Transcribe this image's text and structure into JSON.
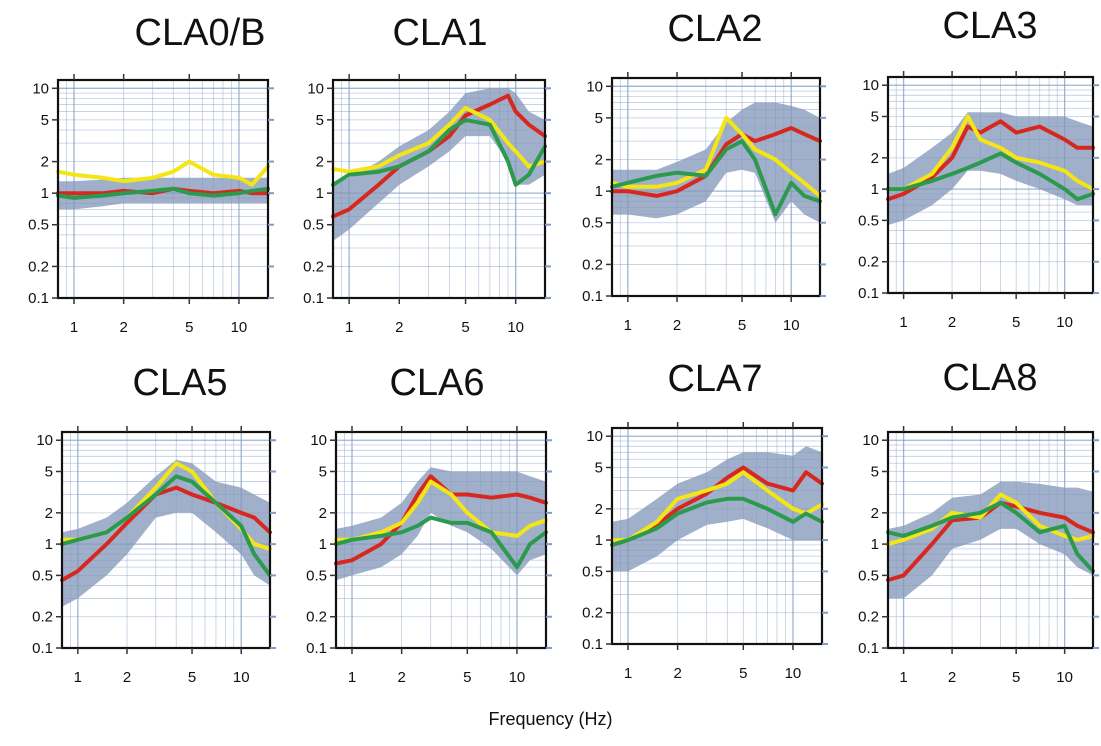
{
  "xlabel": "Frequency (Hz)",
  "colors": {
    "red": "#d7281f",
    "yellow": "#f3e614",
    "green": "#2c9a4e",
    "band": "#8196b8",
    "grid": "#7f9cc4"
  },
  "chart_data": [
    {
      "type": "line",
      "title": "CLA0/B",
      "xscale": "log",
      "yscale": "log",
      "xlim": [
        0.8,
        15
      ],
      "ylim": [
        0.1,
        12
      ],
      "xticks": [
        "1",
        "2",
        "5",
        "10"
      ],
      "yticks": [
        "0.1",
        "0.2",
        "0.5",
        "1",
        "2",
        "5",
        "10"
      ],
      "grid": true,
      "x": [
        0.8,
        1,
        1.5,
        2,
        3,
        4,
        5,
        7,
        10,
        12,
        15
      ],
      "series": [
        {
          "color": "red",
          "values": [
            1.0,
            1.0,
            1.0,
            1.05,
            1.0,
            1.1,
            1.05,
            1.0,
            1.05,
            1.0,
            1.0
          ]
        },
        {
          "color": "yellow",
          "values": [
            1.6,
            1.5,
            1.4,
            1.3,
            1.4,
            1.6,
            2.0,
            1.5,
            1.4,
            1.2,
            1.8
          ]
        },
        {
          "color": "green",
          "values": [
            0.95,
            0.9,
            0.95,
            1.0,
            1.05,
            1.1,
            1.0,
            0.95,
            1.0,
            1.05,
            1.1
          ]
        }
      ],
      "band": {
        "lower": [
          0.7,
          0.7,
          0.75,
          0.8,
          0.8,
          0.8,
          0.8,
          0.8,
          0.8,
          0.8,
          0.8
        ],
        "upper": [
          1.3,
          1.3,
          1.35,
          1.4,
          1.4,
          1.4,
          1.4,
          1.4,
          1.4,
          1.4,
          1.4
        ]
      }
    },
    {
      "type": "line",
      "title": "CLA1",
      "xscale": "log",
      "yscale": "log",
      "xlim": [
        0.8,
        15
      ],
      "ylim": [
        0.1,
        12
      ],
      "xticks": [
        "1",
        "2",
        "5",
        "10"
      ],
      "yticks": [
        "0.1",
        "0.2",
        "0.5",
        "1",
        "2",
        "5",
        "10"
      ],
      "grid": true,
      "x": [
        0.8,
        1,
        1.5,
        2,
        3,
        4,
        5,
        7,
        9,
        10,
        12,
        15
      ],
      "series": [
        {
          "color": "red",
          "values": [
            0.6,
            0.7,
            1.2,
            1.8,
            2.5,
            3.5,
            5.5,
            7.0,
            8.5,
            6.0,
            4.5,
            3.5
          ]
        },
        {
          "color": "yellow",
          "values": [
            1.7,
            1.6,
            1.8,
            2.3,
            3.0,
            4.5,
            6.5,
            5.0,
            3.0,
            2.5,
            1.8,
            2.0
          ]
        },
        {
          "color": "green",
          "values": [
            1.2,
            1.5,
            1.6,
            1.8,
            2.5,
            4.0,
            5.0,
            4.5,
            2.0,
            1.2,
            1.5,
            2.8
          ]
        }
      ],
      "band": {
        "lower": [
          0.35,
          0.45,
          0.8,
          1.2,
          1.8,
          2.5,
          3.5,
          3.5,
          2.0,
          1.2,
          1.2,
          1.5
        ],
        "upper": [
          1.2,
          1.4,
          2.0,
          2.8,
          4.0,
          6.0,
          9.0,
          10.0,
          10.0,
          9.0,
          6.0,
          5.0
        ]
      }
    },
    {
      "type": "line",
      "title": "CLA2",
      "xscale": "log",
      "yscale": "log",
      "xlim": [
        0.8,
        15
      ],
      "ylim": [
        0.1,
        12
      ],
      "xticks": [
        "1",
        "2",
        "5",
        "10"
      ],
      "yticks": [
        "0.1",
        "0.2",
        "0.5",
        "1",
        "2",
        "5",
        "10"
      ],
      "grid": true,
      "x": [
        0.8,
        1,
        1.5,
        2,
        3,
        4,
        5,
        6,
        8,
        10,
        12,
        15
      ],
      "series": [
        {
          "color": "red",
          "values": [
            1.0,
            1.0,
            0.9,
            1.0,
            1.4,
            2.8,
            3.5,
            3.0,
            3.5,
            4.0,
            3.5,
            3.0
          ]
        },
        {
          "color": "yellow",
          "values": [
            1.2,
            1.1,
            1.1,
            1.2,
            1.6,
            5.0,
            3.5,
            2.5,
            2.0,
            1.5,
            1.2,
            0.9
          ]
        },
        {
          "color": "green",
          "values": [
            1.1,
            1.2,
            1.4,
            1.5,
            1.4,
            2.5,
            3.0,
            2.0,
            0.6,
            1.2,
            0.9,
            0.8
          ]
        }
      ],
      "band": {
        "lower": [
          0.6,
          0.6,
          0.55,
          0.6,
          0.8,
          1.5,
          1.6,
          1.5,
          0.5,
          0.8,
          0.6,
          0.5
        ],
        "upper": [
          1.6,
          1.6,
          1.6,
          1.9,
          2.5,
          4.5,
          6.0,
          7.0,
          7.0,
          6.5,
          6.0,
          5.0
        ]
      }
    },
    {
      "type": "line",
      "title": "CLA3",
      "xscale": "log",
      "yscale": "log",
      "xlim": [
        0.8,
        15
      ],
      "ylim": [
        0.1,
        12
      ],
      "xticks": [
        "1",
        "2",
        "5",
        "10"
      ],
      "yticks": [
        "0.1",
        "0.2",
        "0.5",
        "1",
        "2",
        "5",
        "10"
      ],
      "grid": true,
      "x": [
        0.8,
        1,
        1.5,
        2,
        2.5,
        3,
        4,
        5,
        7,
        10,
        12,
        15
      ],
      "series": [
        {
          "color": "red",
          "values": [
            0.8,
            0.9,
            1.3,
            2.0,
            4.0,
            3.5,
            4.5,
            3.5,
            4.0,
            3.0,
            2.5,
            2.5
          ]
        },
        {
          "color": "yellow",
          "values": [
            1.0,
            1.0,
            1.4,
            2.5,
            5.0,
            3.0,
            2.5,
            2.0,
            1.8,
            1.5,
            1.2,
            1.0
          ]
        },
        {
          "color": "green",
          "values": [
            1.0,
            1.0,
            1.2,
            1.4,
            1.6,
            1.8,
            2.2,
            1.8,
            1.4,
            1.0,
            0.8,
            0.9
          ]
        }
      ],
      "band": {
        "lower": [
          0.45,
          0.5,
          0.7,
          1.0,
          1.5,
          1.5,
          1.4,
          1.2,
          1.0,
          0.8,
          0.7,
          0.7
        ],
        "upper": [
          1.4,
          1.6,
          2.5,
          3.5,
          5.5,
          5.5,
          5.5,
          5.0,
          5.0,
          5.0,
          4.5,
          4.0
        ]
      }
    },
    {
      "type": "line",
      "title": "CLA5",
      "xscale": "log",
      "yscale": "log",
      "xlim": [
        0.8,
        15
      ],
      "ylim": [
        0.1,
        12
      ],
      "xticks": [
        "1",
        "2",
        "5",
        "10"
      ],
      "yticks": [
        "0.1",
        "0.2",
        "0.5",
        "1",
        "2",
        "5",
        "10"
      ],
      "grid": true,
      "x": [
        0.8,
        1,
        1.5,
        2,
        3,
        4,
        5,
        7,
        10,
        12,
        15
      ],
      "series": [
        {
          "color": "red",
          "values": [
            0.45,
            0.55,
            1.0,
            1.6,
            3.0,
            3.5,
            3.0,
            2.5,
            2.0,
            1.8,
            1.3
          ]
        },
        {
          "color": "yellow",
          "values": [
            1.1,
            1.1,
            1.3,
            1.8,
            3.5,
            6.0,
            5.0,
            2.5,
            1.4,
            1.0,
            0.9
          ]
        },
        {
          "color": "green",
          "values": [
            1.0,
            1.1,
            1.3,
            1.8,
            3.0,
            4.5,
            4.0,
            2.5,
            1.5,
            0.8,
            0.5
          ]
        }
      ],
      "band": {
        "lower": [
          0.25,
          0.3,
          0.5,
          0.8,
          1.8,
          2.0,
          2.0,
          1.3,
          0.8,
          0.5,
          0.4
        ],
        "upper": [
          1.3,
          1.4,
          1.8,
          2.5,
          4.5,
          6.5,
          6.0,
          4.0,
          3.5,
          3.0,
          2.5
        ]
      }
    },
    {
      "type": "line",
      "title": "CLA6",
      "xscale": "log",
      "yscale": "log",
      "xlim": [
        0.8,
        15
      ],
      "ylim": [
        0.1,
        12
      ],
      "xticks": [
        "1",
        "2",
        "5",
        "10"
      ],
      "yticks": [
        "0.1",
        "0.2",
        "0.5",
        "1",
        "2",
        "5",
        "10"
      ],
      "grid": true,
      "x": [
        0.8,
        1,
        1.5,
        2,
        2.5,
        3,
        4,
        5,
        7,
        10,
        12,
        15
      ],
      "series": [
        {
          "color": "red",
          "values": [
            0.65,
            0.7,
            1.0,
            1.6,
            3.0,
            4.5,
            3.0,
            3.0,
            2.8,
            3.0,
            2.8,
            2.5
          ]
        },
        {
          "color": "yellow",
          "values": [
            1.1,
            1.1,
            1.3,
            1.6,
            2.5,
            4.0,
            3.0,
            2.0,
            1.3,
            1.2,
            1.5,
            1.7
          ]
        },
        {
          "color": "green",
          "values": [
            1.0,
            1.1,
            1.2,
            1.3,
            1.5,
            1.8,
            1.6,
            1.6,
            1.3,
            0.6,
            1.0,
            1.3
          ]
        }
      ],
      "band": {
        "lower": [
          0.45,
          0.5,
          0.6,
          0.8,
          1.2,
          2.0,
          1.5,
          1.3,
          0.9,
          0.5,
          0.7,
          0.8
        ],
        "upper": [
          1.4,
          1.5,
          1.8,
          2.5,
          4.0,
          5.5,
          5.0,
          5.0,
          5.0,
          5.0,
          4.5,
          4.0
        ]
      }
    },
    {
      "type": "line",
      "title": "CLA7",
      "xscale": "log",
      "yscale": "log",
      "xlim": [
        0.8,
        15
      ],
      "ylim": [
        0.1,
        12
      ],
      "xticks": [
        "1",
        "2",
        "5",
        "10"
      ],
      "yticks": [
        "0.1",
        "0.2",
        "0.5",
        "1",
        "2",
        "5",
        "10"
      ],
      "grid": true,
      "x": [
        0.8,
        1,
        1.5,
        2,
        3,
        4,
        5,
        7,
        10,
        12,
        15
      ],
      "series": [
        {
          "color": "red",
          "values": [
            0.9,
            1.0,
            1.4,
            2.0,
            2.8,
            4.0,
            5.0,
            3.5,
            3.0,
            4.5,
            3.5
          ]
        },
        {
          "color": "yellow",
          "values": [
            1.0,
            1.0,
            1.5,
            2.5,
            3.0,
            3.5,
            4.5,
            3.0,
            2.0,
            1.8,
            2.2
          ]
        },
        {
          "color": "green",
          "values": [
            0.9,
            1.0,
            1.3,
            1.8,
            2.3,
            2.5,
            2.5,
            2.0,
            1.5,
            1.8,
            1.5
          ]
        }
      ],
      "band": {
        "lower": [
          0.5,
          0.5,
          0.7,
          1.0,
          1.4,
          1.5,
          1.6,
          1.3,
          1.0,
          1.0,
          1.0
        ],
        "upper": [
          1.5,
          1.6,
          2.5,
          3.5,
          4.5,
          6.0,
          7.0,
          7.0,
          6.5,
          8.0,
          7.0
        ]
      }
    },
    {
      "type": "line",
      "title": "CLA8",
      "xscale": "log",
      "yscale": "log",
      "xlim": [
        0.8,
        15
      ],
      "ylim": [
        0.1,
        12
      ],
      "xticks": [
        "1",
        "2",
        "5",
        "10"
      ],
      "yticks": [
        "0.1",
        "0.2",
        "0.5",
        "1",
        "2",
        "5",
        "10"
      ],
      "grid": true,
      "x": [
        0.8,
        1,
        1.5,
        2,
        3,
        4,
        5,
        7,
        10,
        12,
        15
      ],
      "series": [
        {
          "color": "red",
          "values": [
            0.45,
            0.5,
            1.0,
            1.7,
            1.8,
            2.5,
            2.3,
            2.0,
            1.8,
            1.5,
            1.3
          ]
        },
        {
          "color": "yellow",
          "values": [
            1.0,
            1.1,
            1.4,
            2.0,
            1.8,
            3.0,
            2.5,
            1.5,
            1.2,
            1.1,
            1.2
          ]
        },
        {
          "color": "green",
          "values": [
            1.3,
            1.2,
            1.5,
            1.8,
            2.0,
            2.5,
            2.0,
            1.3,
            1.5,
            0.8,
            0.55
          ]
        }
      ],
      "band": {
        "lower": [
          0.3,
          0.3,
          0.5,
          0.9,
          1.1,
          1.4,
          1.4,
          1.0,
          0.8,
          0.6,
          0.5
        ],
        "upper": [
          1.4,
          1.5,
          2.0,
          2.8,
          3.0,
          4.0,
          4.0,
          3.8,
          3.5,
          3.5,
          3.2
        ]
      }
    }
  ]
}
